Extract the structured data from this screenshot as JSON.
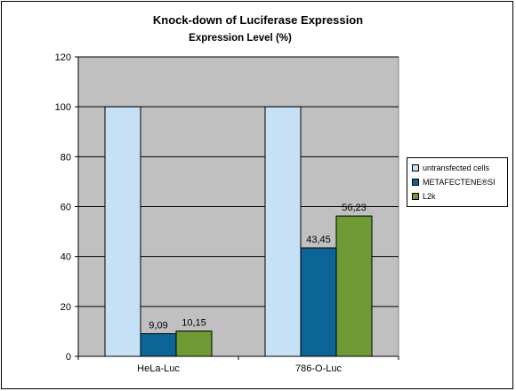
{
  "chart_data": {
    "type": "bar",
    "title": "Knock-down of Luciferase Expression",
    "subtitle": "Expression Level (%)",
    "xlabel": "",
    "ylabel": "",
    "categories": [
      "HeLa-Luc",
      "786-O-Luc"
    ],
    "ylim": [
      0,
      120
    ],
    "yticks": [
      0,
      20,
      40,
      60,
      80,
      100,
      120
    ],
    "grid": true,
    "legend_position": "right",
    "series": [
      {
        "name": "untransfected cells",
        "values": [
          100,
          100
        ],
        "color": "#c6e0f5",
        "labels": [
          "",
          ""
        ]
      },
      {
        "name": "METAFECTENE®SI",
        "values": [
          9.09,
          43.45
        ],
        "color": "#0d6496",
        "labels": [
          "9,09",
          "43,45"
        ]
      },
      {
        "name": "L2k",
        "values": [
          10.15,
          56.23
        ],
        "color": "#6e9a33",
        "labels": [
          "10,15",
          "56,23"
        ]
      }
    ],
    "plot_background": "#c0c0c0"
  }
}
